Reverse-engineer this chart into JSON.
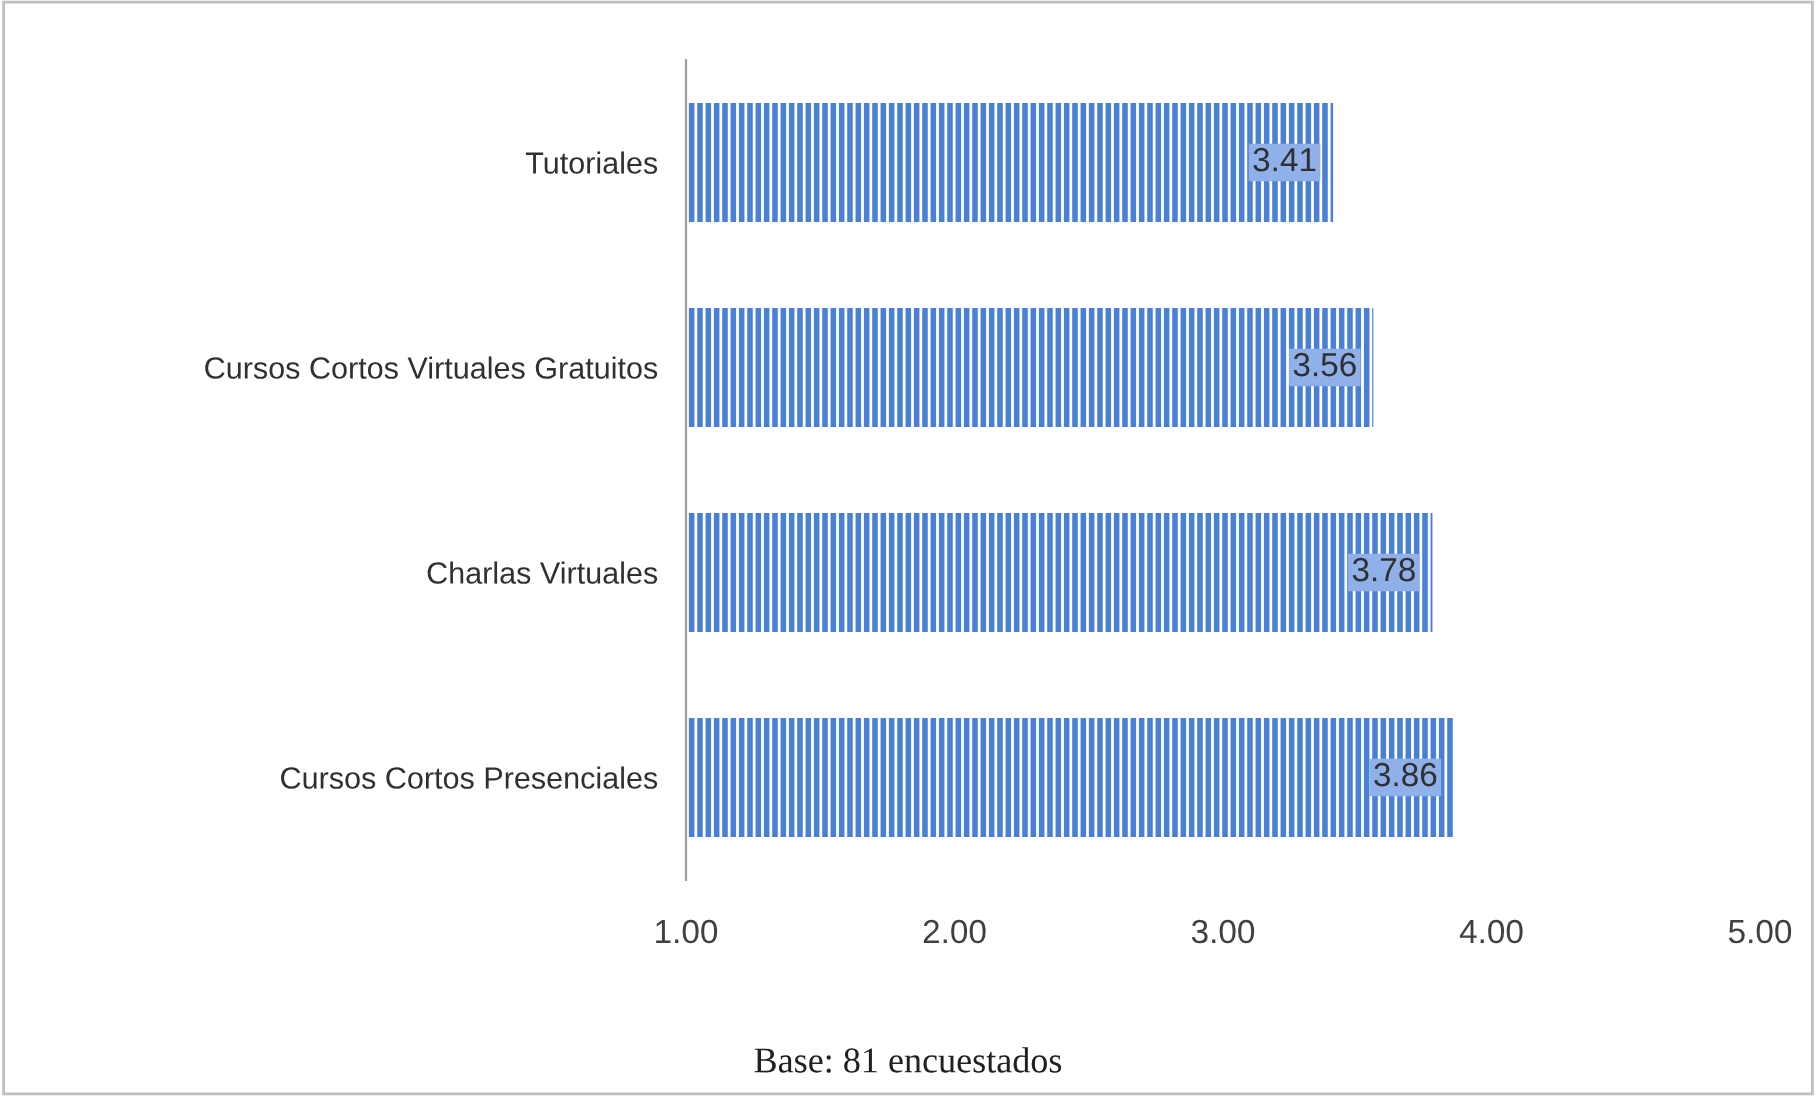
{
  "chart_data": {
    "type": "bar",
    "orientation": "horizontal",
    "categories": [
      "Tutoriales",
      "Cursos Cortos Virtuales Gratuitos",
      "Charlas Virtuales",
      "Cursos Cortos Presenciales"
    ],
    "values": [
      3.41,
      3.56,
      3.78,
      3.86
    ],
    "color": "#4a7fd6",
    "xlim": [
      1,
      5
    ],
    "xticks": [
      {
        "value": 1,
        "label": "1.00"
      },
      {
        "value": 2,
        "label": "2.00"
      },
      {
        "value": 3,
        "label": "3.00"
      },
      {
        "value": 4,
        "label": "4.00"
      },
      {
        "value": 5,
        "label": "5.00"
      }
    ],
    "data_labels": true,
    "grid": false,
    "annotations": [
      "Base: 81 encuestados"
    ]
  }
}
